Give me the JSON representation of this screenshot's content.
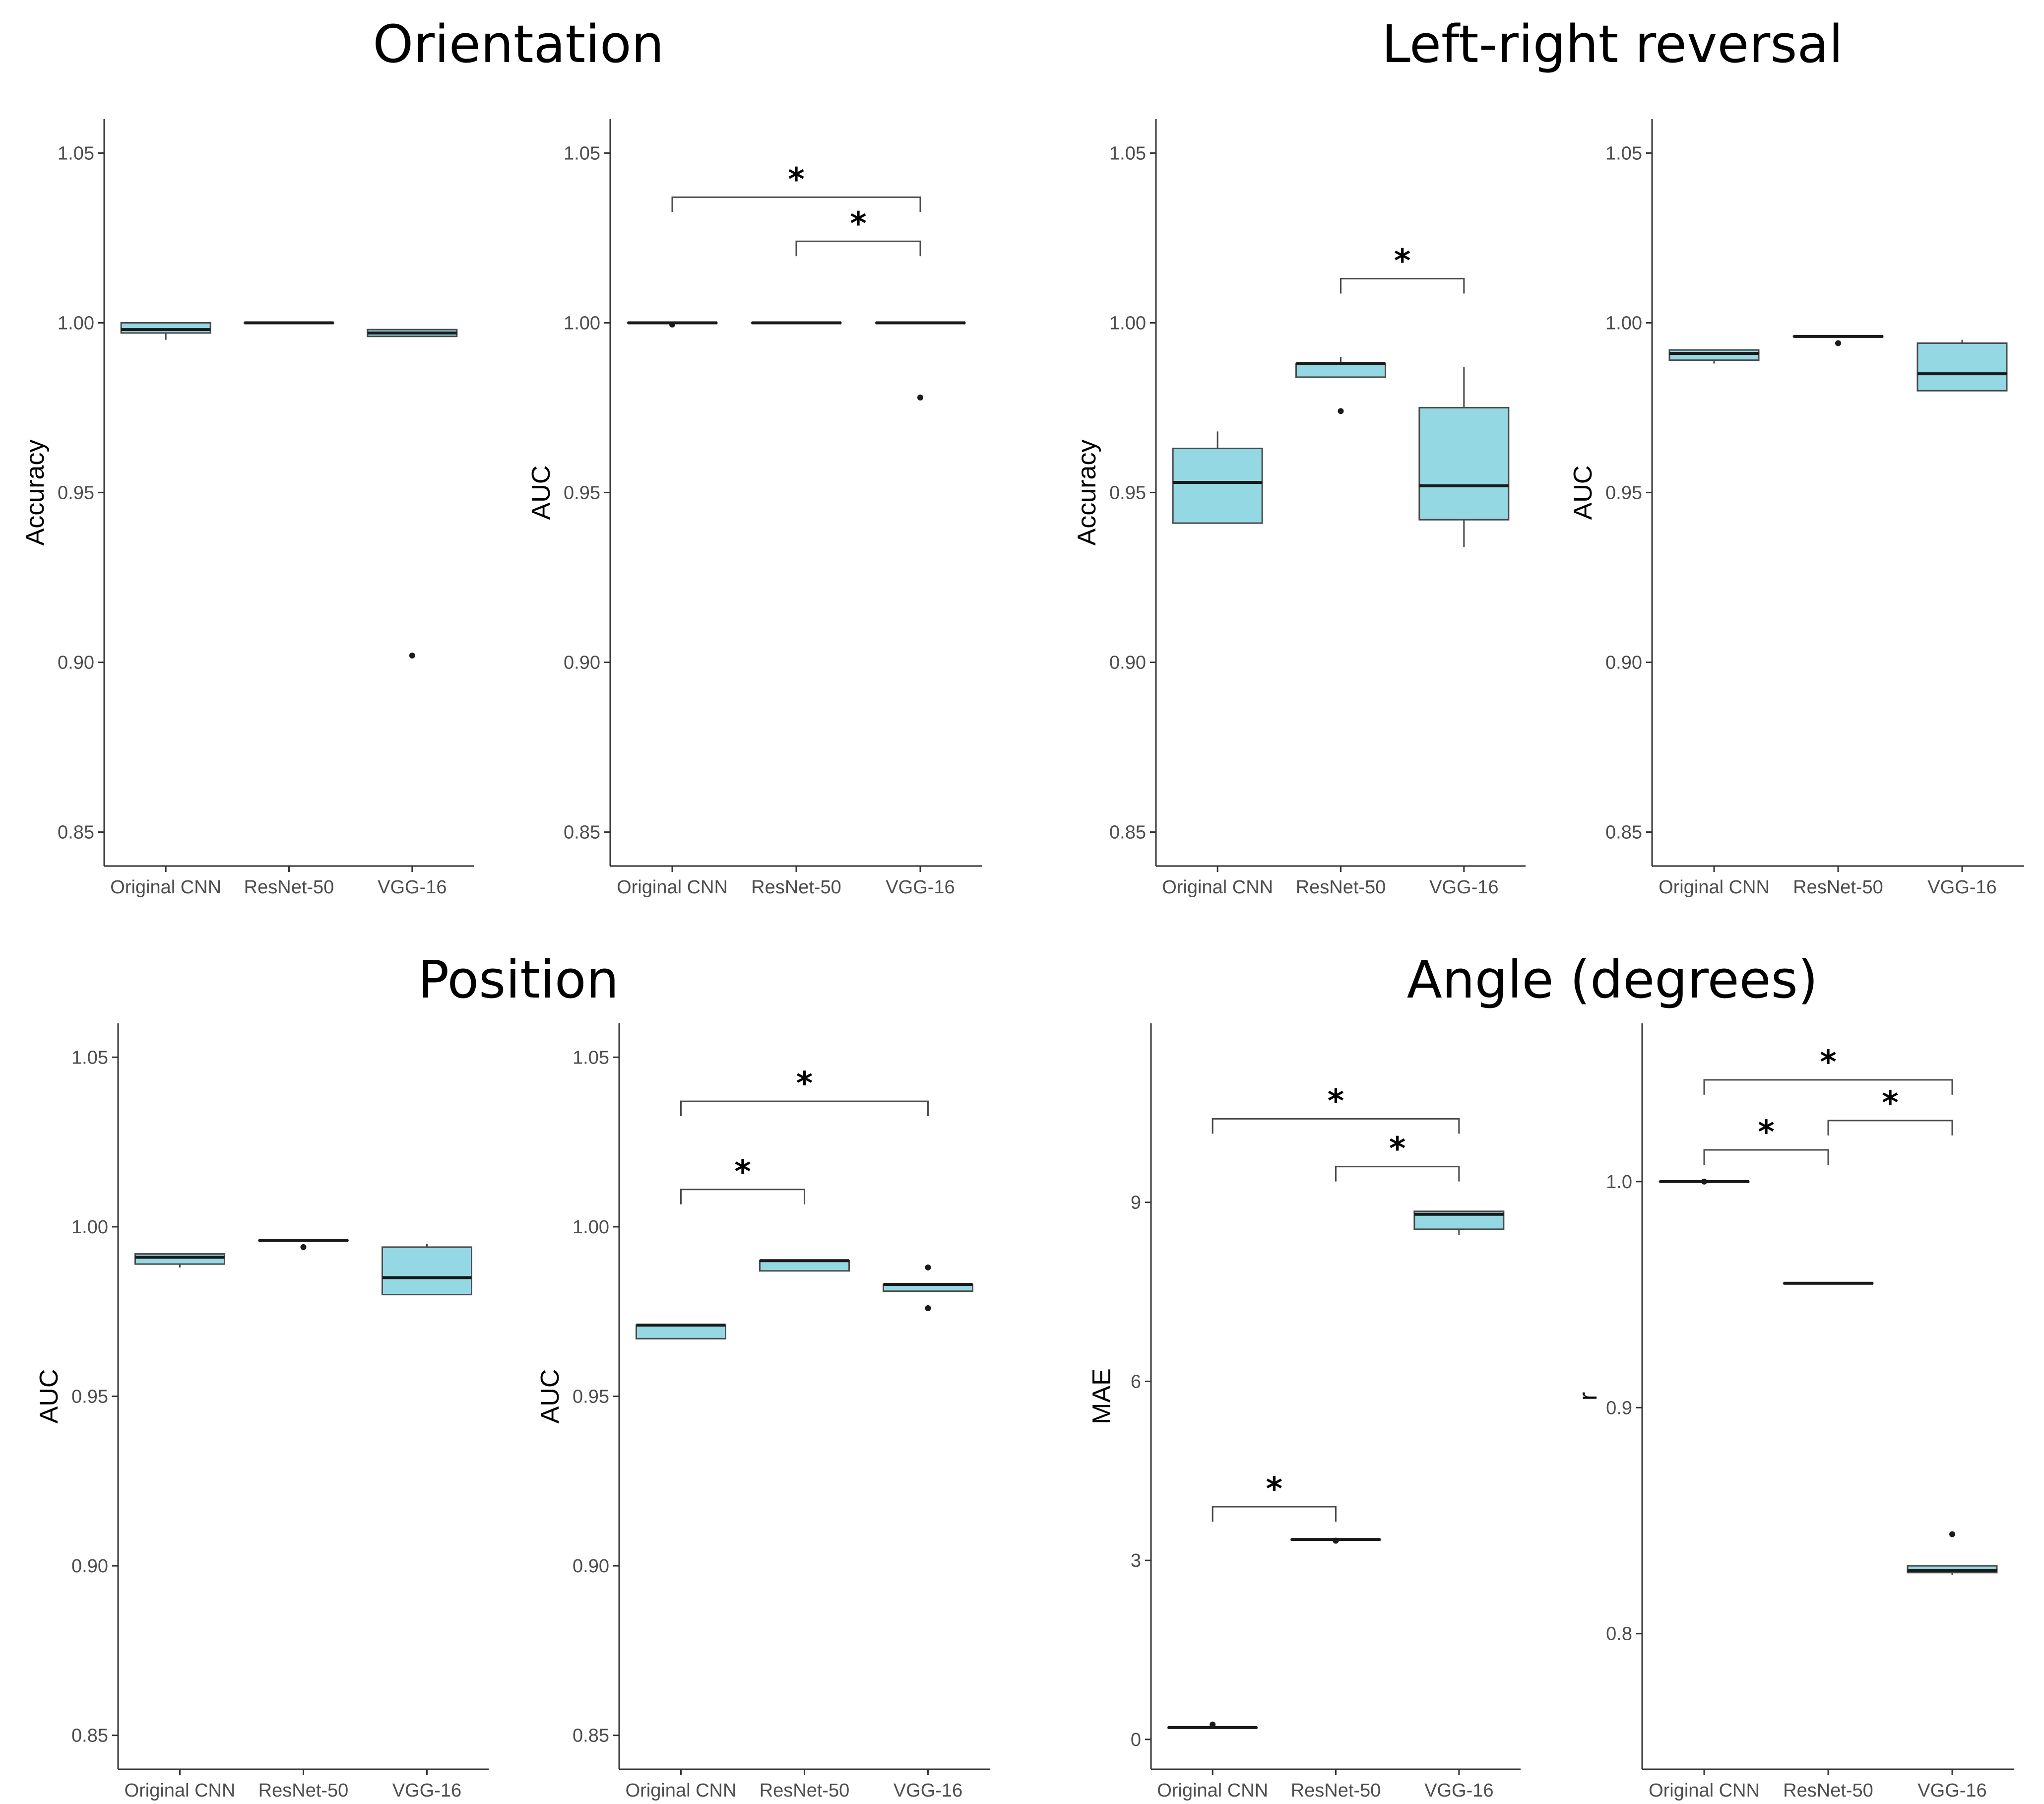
{
  "section_titles": [
    "Orientation",
    "Left-right reversal",
    "Position",
    "Angle (degrees)"
  ],
  "chart_data": [
    {
      "type": "box",
      "section": "Orientation",
      "ylabel": "Accuracy",
      "categories": [
        "Original CNN",
        "ResNet-50",
        "VGG-16"
      ],
      "ylim": [
        0.84,
        1.06
      ],
      "yticks": [
        0.85,
        0.9,
        0.95,
        1.0,
        1.05
      ],
      "ytick_labels": [
        "0.85",
        "0.90",
        "0.95",
        "1.00",
        "1.05"
      ],
      "boxes": [
        {
          "low": 0.995,
          "q1": 0.997,
          "median": 0.998,
          "q3": 1.0,
          "high": 1.0,
          "outliers": []
        },
        {
          "low": 1.0,
          "q1": 1.0,
          "median": 1.0,
          "q3": 1.0,
          "high": 1.0,
          "outliers": []
        },
        {
          "low": 0.996,
          "q1": 0.996,
          "median": 0.997,
          "q3": 0.998,
          "high": 0.998,
          "outliers": [
            0.902
          ]
        }
      ],
      "significance": []
    },
    {
      "type": "box",
      "section": "Orientation",
      "ylabel": "AUC",
      "categories": [
        "Original CNN",
        "ResNet-50",
        "VGG-16"
      ],
      "ylim": [
        0.84,
        1.06
      ],
      "yticks": [
        0.85,
        0.9,
        0.95,
        1.0,
        1.05
      ],
      "ytick_labels": [
        "0.85",
        "0.90",
        "0.95",
        "1.00",
        "1.05"
      ],
      "boxes": [
        {
          "low": 1.0,
          "q1": 1.0,
          "median": 1.0,
          "q3": 1.0,
          "high": 1.0,
          "outliers": [
            0.9995
          ]
        },
        {
          "low": 1.0,
          "q1": 1.0,
          "median": 1.0,
          "q3": 1.0,
          "high": 1.0,
          "outliers": []
        },
        {
          "low": 1.0,
          "q1": 1.0,
          "median": 1.0,
          "q3": 1.0,
          "high": 1.0,
          "outliers": [
            0.978
          ]
        }
      ],
      "significance": [
        {
          "from": 0,
          "to": 2,
          "y": 1.037,
          "label": "*"
        },
        {
          "from": 1,
          "to": 2,
          "y": 1.024,
          "label": "*"
        }
      ]
    },
    {
      "type": "box",
      "section": "Left-right reversal",
      "ylabel": "Accuracy",
      "categories": [
        "Original CNN",
        "ResNet-50",
        "VGG-16"
      ],
      "ylim": [
        0.84,
        1.06
      ],
      "yticks": [
        0.85,
        0.9,
        0.95,
        1.0,
        1.05
      ],
      "ytick_labels": [
        "0.85",
        "0.90",
        "0.95",
        "1.00",
        "1.05"
      ],
      "boxes": [
        {
          "low": 0.941,
          "q1": 0.941,
          "median": 0.953,
          "q3": 0.963,
          "high": 0.968,
          "outliers": []
        },
        {
          "low": 0.984,
          "q1": 0.984,
          "median": 0.988,
          "q3": 0.988,
          "high": 0.99,
          "outliers": [
            0.974
          ]
        },
        {
          "low": 0.934,
          "q1": 0.942,
          "median": 0.952,
          "q3": 0.975,
          "high": 0.987,
          "outliers": []
        }
      ],
      "significance": [
        {
          "from": 1,
          "to": 2,
          "y": 1.013,
          "label": "*"
        }
      ]
    },
    {
      "type": "box",
      "section": "Left-right reversal",
      "ylabel": "AUC",
      "categories": [
        "Original CNN",
        "ResNet-50",
        "VGG-16"
      ],
      "ylim": [
        0.84,
        1.06
      ],
      "yticks": [
        0.85,
        0.9,
        0.95,
        1.0,
        1.05
      ],
      "ytick_labels": [
        "0.85",
        "0.90",
        "0.95",
        "1.00",
        "1.05"
      ],
      "boxes": [
        {
          "low": 0.988,
          "q1": 0.989,
          "median": 0.991,
          "q3": 0.992,
          "high": 0.992,
          "outliers": []
        },
        {
          "low": 0.996,
          "q1": 0.996,
          "median": 0.996,
          "q3": 0.996,
          "high": 0.996,
          "outliers": [
            0.994
          ]
        },
        {
          "low": 0.98,
          "q1": 0.98,
          "median": 0.985,
          "q3": 0.994,
          "high": 0.995,
          "outliers": []
        }
      ],
      "significance": []
    },
    {
      "type": "box",
      "section": "Position",
      "ylabel": "AUC",
      "categories": [
        "Original CNN",
        "ResNet-50",
        "VGG-16"
      ],
      "ylim": [
        0.84,
        1.06
      ],
      "yticks": [
        0.85,
        0.9,
        0.95,
        1.0,
        1.05
      ],
      "ytick_labels": [
        "0.85",
        "0.90",
        "0.95",
        "1.00",
        "1.05"
      ],
      "boxes": [
        {
          "low": 0.988,
          "q1": 0.989,
          "median": 0.991,
          "q3": 0.992,
          "high": 0.992,
          "outliers": []
        },
        {
          "low": 0.996,
          "q1": 0.996,
          "median": 0.996,
          "q3": 0.996,
          "high": 0.996,
          "outliers": [
            0.994
          ]
        },
        {
          "low": 0.98,
          "q1": 0.98,
          "median": 0.985,
          "q3": 0.994,
          "high": 0.995,
          "outliers": []
        }
      ],
      "significance": []
    },
    {
      "type": "box",
      "section": "Position",
      "ylabel": "AUC",
      "categories": [
        "Original CNN",
        "ResNet-50",
        "VGG-16"
      ],
      "ylim": [
        0.84,
        1.06
      ],
      "yticks": [
        0.85,
        0.9,
        0.95,
        1.0,
        1.05
      ],
      "ytick_labels": [
        "0.85",
        "0.90",
        "0.95",
        "1.00",
        "1.05"
      ],
      "boxes": [
        {
          "low": 0.967,
          "q1": 0.967,
          "median": 0.971,
          "q3": 0.971,
          "high": 0.971,
          "outliers": []
        },
        {
          "low": 0.987,
          "q1": 0.987,
          "median": 0.99,
          "q3": 0.99,
          "high": 0.99,
          "outliers": []
        },
        {
          "low": 0.981,
          "q1": 0.981,
          "median": 0.983,
          "q3": 0.983,
          "high": 0.983,
          "outliers": [
            0.988,
            0.976
          ]
        }
      ],
      "significance": [
        {
          "from": 0,
          "to": 2,
          "y": 1.037,
          "label": "*"
        },
        {
          "from": 0,
          "to": 1,
          "y": 1.011,
          "label": "*"
        }
      ]
    },
    {
      "type": "box",
      "section": "Angle (degrees)",
      "ylabel": "MAE",
      "categories": [
        "Original CNN",
        "ResNet-50",
        "VGG-16"
      ],
      "ylim": [
        -0.5,
        12.0
      ],
      "yticks": [
        0,
        3,
        6,
        9
      ],
      "ytick_labels": [
        "0",
        "3",
        "6",
        "9"
      ],
      "boxes": [
        {
          "low": 0.2,
          "q1": 0.2,
          "median": 0.2,
          "q3": 0.2,
          "high": 0.2,
          "outliers": [
            0.25
          ]
        },
        {
          "low": 3.35,
          "q1": 3.35,
          "median": 3.35,
          "q3": 3.35,
          "high": 3.35,
          "outliers": [
            3.33
          ]
        },
        {
          "low": 8.45,
          "q1": 8.55,
          "median": 8.8,
          "q3": 8.85,
          "high": 8.85,
          "outliers": []
        }
      ],
      "significance": [
        {
          "from": 0,
          "to": 2,
          "y": 10.4,
          "label": "*"
        },
        {
          "from": 1,
          "to": 2,
          "y": 9.6,
          "label": "*"
        },
        {
          "from": 0,
          "to": 1,
          "y": 3.9,
          "label": "*"
        }
      ]
    },
    {
      "type": "box",
      "section": "Angle (degrees)",
      "ylabel": "r",
      "categories": [
        "Original CNN",
        "ResNet-50",
        "VGG-16"
      ],
      "ylim": [
        0.74,
        1.07
      ],
      "yticks": [
        0.8,
        0.9,
        1.0
      ],
      "ytick_labels": [
        "0.8",
        "0.9",
        "1.0"
      ],
      "boxes": [
        {
          "low": 1.0,
          "q1": 1.0,
          "median": 1.0,
          "q3": 1.0,
          "high": 1.0,
          "outliers": [
            1.0
          ]
        },
        {
          "low": 0.955,
          "q1": 0.955,
          "median": 0.955,
          "q3": 0.955,
          "high": 0.955,
          "outliers": []
        },
        {
          "low": 0.826,
          "q1": 0.827,
          "median": 0.828,
          "q3": 0.83,
          "high": 0.83,
          "outliers": [
            0.844
          ]
        }
      ],
      "significance": [
        {
          "from": 0,
          "to": 2,
          "y": 1.045,
          "label": "*"
        },
        {
          "from": 1,
          "to": 2,
          "y": 1.027,
          "label": "*"
        },
        {
          "from": 0,
          "to": 1,
          "y": 1.014,
          "label": "*"
        }
      ]
    }
  ]
}
